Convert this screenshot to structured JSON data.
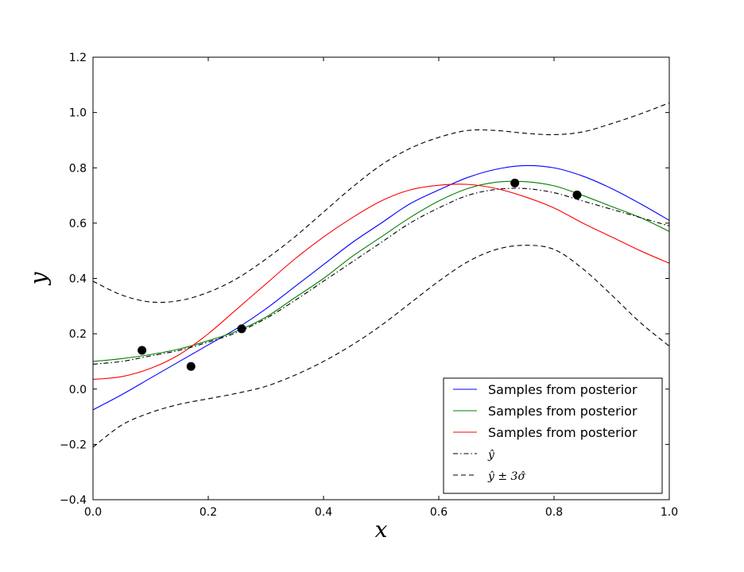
{
  "chart_data": {
    "type": "line",
    "title": "",
    "xlabel": "x",
    "ylabel": "y",
    "xlim": [
      0.0,
      1.0
    ],
    "ylim": [
      -0.4,
      1.2
    ],
    "xticks": [
      0.0,
      0.2,
      0.4,
      0.6,
      0.8,
      1.0
    ],
    "yticks": [
      -0.4,
      -0.2,
      0.0,
      0.2,
      0.4,
      0.6,
      0.8,
      1.0,
      1.2
    ],
    "xtick_labels": [
      "0.0",
      "0.2",
      "0.4",
      "0.6",
      "0.8",
      "1.0"
    ],
    "ytick_labels": [
      "−0.4",
      "−0.2",
      "0.0",
      "0.2",
      "0.4",
      "0.6",
      "0.8",
      "1.0",
      "1.2"
    ],
    "grid": false,
    "legend_position": "lower-right",
    "x": [
      0.0,
      0.05,
      0.1,
      0.15,
      0.2,
      0.25,
      0.3,
      0.35,
      0.4,
      0.45,
      0.5,
      0.55,
      0.6,
      0.65,
      0.7,
      0.75,
      0.8,
      0.85,
      0.9,
      0.95,
      1.0
    ],
    "series": [
      {
        "name": "Samples from posterior",
        "color": "#0000ff",
        "style": "solid",
        "values": [
          -0.075,
          -0.02,
          0.04,
          0.1,
          0.16,
          0.22,
          0.29,
          0.37,
          0.45,
          0.53,
          0.6,
          0.67,
          0.72,
          0.765,
          0.795,
          0.808,
          0.8,
          0.77,
          0.725,
          0.67,
          0.61
        ]
      },
      {
        "name": "Samples from posterior",
        "color": "#008000",
        "style": "solid",
        "values": [
          0.1,
          0.11,
          0.125,
          0.145,
          0.175,
          0.21,
          0.26,
          0.33,
          0.4,
          0.48,
          0.55,
          0.62,
          0.68,
          0.725,
          0.748,
          0.75,
          0.735,
          0.7,
          0.66,
          0.62,
          0.57
        ]
      },
      {
        "name": "Samples from posterior",
        "color": "#ff0000",
        "style": "solid",
        "values": [
          0.035,
          0.045,
          0.075,
          0.125,
          0.2,
          0.29,
          0.38,
          0.47,
          0.55,
          0.62,
          0.68,
          0.72,
          0.737,
          0.74,
          0.725,
          0.695,
          0.655,
          0.6,
          0.55,
          0.5,
          0.455
        ]
      },
      {
        "name": "$\\hat{y}$",
        "color": "#000000",
        "style": "dashdot",
        "values": [
          0.09,
          0.1,
          0.12,
          0.14,
          0.17,
          0.205,
          0.255,
          0.32,
          0.39,
          0.46,
          0.53,
          0.6,
          0.655,
          0.7,
          0.722,
          0.725,
          0.71,
          0.68,
          0.65,
          0.62,
          0.59
        ]
      },
      {
        "name": "$\\hat{y} \\pm 3\\hat{\\sigma}$",
        "color": "#000000",
        "style": "dashed",
        "values": [
          0.39,
          0.34,
          0.315,
          0.32,
          0.35,
          0.4,
          0.47,
          0.55,
          0.64,
          0.73,
          0.81,
          0.87,
          0.91,
          0.935,
          0.935,
          0.925,
          0.92,
          0.93,
          0.96,
          0.995,
          1.035
        ]
      },
      {
        "name": "",
        "color": "#000000",
        "style": "dashed",
        "values": [
          -0.21,
          -0.13,
          -0.085,
          -0.055,
          -0.035,
          -0.015,
          0.01,
          0.05,
          0.1,
          0.16,
          0.23,
          0.31,
          0.39,
          0.46,
          0.505,
          0.52,
          0.505,
          0.435,
          0.34,
          0.24,
          0.155
        ]
      }
    ],
    "points": [
      {
        "x": 0.085,
        "y": 0.14
      },
      {
        "x": 0.17,
        "y": 0.082
      },
      {
        "x": 0.258,
        "y": 0.218
      },
      {
        "x": 0.732,
        "y": 0.745
      },
      {
        "x": 0.84,
        "y": 0.702
      }
    ],
    "legend": [
      {
        "label": "Samples from posterior",
        "color": "#0000ff",
        "style": "solid",
        "math": false
      },
      {
        "label": "Samples from posterior",
        "color": "#008000",
        "style": "solid",
        "math": false
      },
      {
        "label": "Samples from posterior",
        "color": "#ff0000",
        "style": "solid",
        "math": false
      },
      {
        "label": "ŷ",
        "color": "#000000",
        "style": "dashdot",
        "math": true
      },
      {
        "label": "ŷ ± 3σ̂",
        "color": "#000000",
        "style": "dashed",
        "math": true
      }
    ]
  }
}
